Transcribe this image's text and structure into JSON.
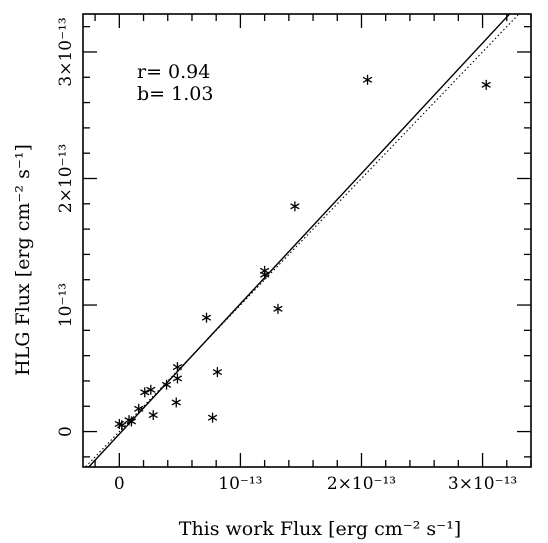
{
  "chart_data": {
    "type": "scatter",
    "title": "",
    "xlabel": "This work  Flux [erg cm⁻² s⁻¹]",
    "ylabel": "HLG  Flux [erg cm⁻² s⁻¹]",
    "xlim": [
      -0.3,
      3.4
    ],
    "ylim": [
      -0.28,
      3.3
    ],
    "unit_scale": "1e-13",
    "x_ticks": [
      {
        "value": 0,
        "label": "0"
      },
      {
        "value": 1,
        "label": "10⁻¹³"
      },
      {
        "value": 2,
        "label": "2×10⁻¹³"
      },
      {
        "value": 3,
        "label": "3×10⁻¹³"
      }
    ],
    "y_ticks": [
      {
        "value": 0,
        "label": "0"
      },
      {
        "value": 1,
        "label": "10⁻¹³"
      },
      {
        "value": 2,
        "label": "2×10⁻¹³"
      },
      {
        "value": 3,
        "label": "3×10⁻¹³"
      }
    ],
    "annotations": [
      "r= 0.94",
      "b= 1.03"
    ],
    "points": [
      {
        "x": 0.0,
        "y": 0.06
      },
      {
        "x": 0.02,
        "y": 0.05
      },
      {
        "x": 0.08,
        "y": 0.09
      },
      {
        "x": 0.1,
        "y": 0.08
      },
      {
        "x": 0.16,
        "y": 0.18
      },
      {
        "x": 0.21,
        "y": 0.31
      },
      {
        "x": 0.26,
        "y": 0.33
      },
      {
        "x": 0.28,
        "y": 0.13
      },
      {
        "x": 0.39,
        "y": 0.37
      },
      {
        "x": 0.48,
        "y": 0.51
      },
      {
        "x": 0.48,
        "y": 0.42
      },
      {
        "x": 0.47,
        "y": 0.23
      },
      {
        "x": 0.72,
        "y": 0.9
      },
      {
        "x": 0.77,
        "y": 0.11
      },
      {
        "x": 0.81,
        "y": 0.47
      },
      {
        "x": 1.2,
        "y": 1.27
      },
      {
        "x": 1.2,
        "y": 1.24
      },
      {
        "x": 1.31,
        "y": 0.97
      },
      {
        "x": 1.45,
        "y": 1.78
      },
      {
        "x": 2.05,
        "y": 2.78
      },
      {
        "x": 3.03,
        "y": 2.74
      }
    ],
    "fits": [
      {
        "style": "solid",
        "slope": 1.03,
        "intercept": -0.02
      },
      {
        "style": "dotted",
        "slope": 1.0,
        "intercept": 0.0
      }
    ]
  }
}
